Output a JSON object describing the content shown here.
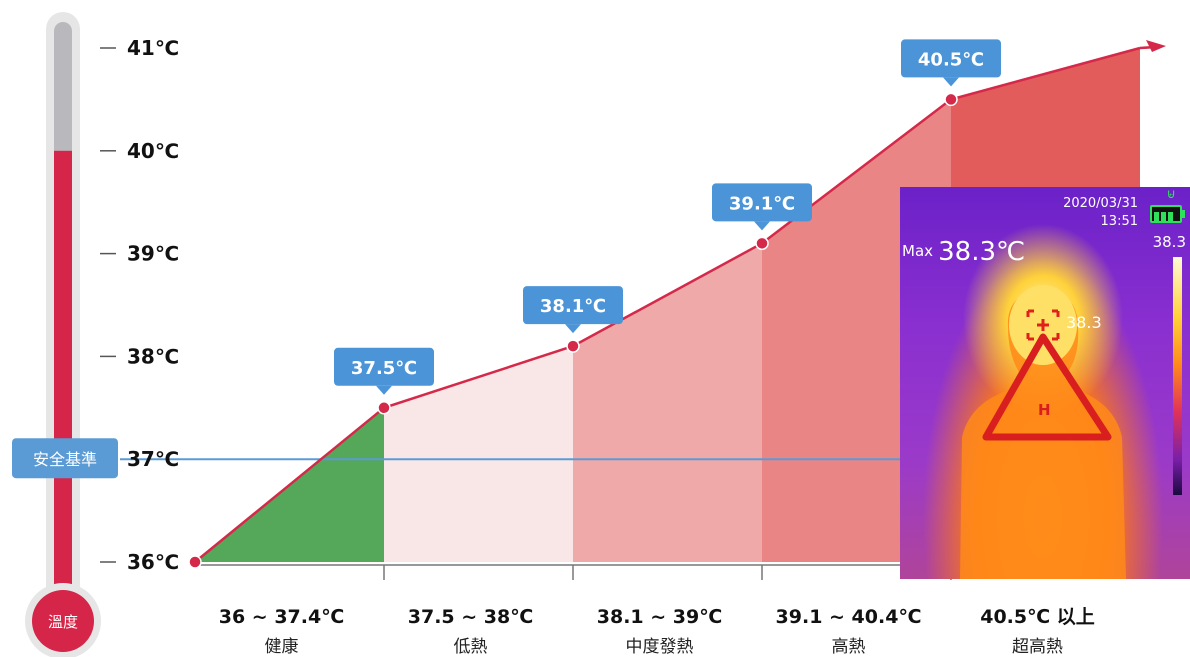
{
  "chart_data": {
    "type": "line",
    "x_labels": [
      "",
      "",
      "",
      "",
      "",
      ""
    ],
    "y": [
      36,
      37.5,
      38.1,
      39.1,
      40.5,
      41
    ],
    "point_labels": [
      "",
      "37.5℃",
      "38.1℃",
      "39.1℃",
      "40.5℃",
      ""
    ],
    "yticks": [
      {
        "value": 36,
        "label": "36℃"
      },
      {
        "value": 37,
        "label": "37℃"
      },
      {
        "value": 38,
        "label": "38℃"
      },
      {
        "value": 39,
        "label": "39℃"
      },
      {
        "value": 40,
        "label": "40℃"
      },
      {
        "value": 41,
        "label": "41℃"
      }
    ],
    "ylim": [
      36,
      41
    ],
    "ranges": [
      {
        "label": "36 ~ 37.4℃",
        "status": "健康",
        "color": "#55a75a"
      },
      {
        "label": "37.5 ~ 38℃",
        "status": "低熱",
        "color": "#f9e6e6"
      },
      {
        "label": "38.1 ~ 39℃",
        "status": "中度發熱",
        "color": "#f0a9a9"
      },
      {
        "label": "39.1 ~ 40.4℃",
        "status": "高熱",
        "color": "#ea8585"
      },
      {
        "label": "40.5℃ 以上",
        "status": "超高熱",
        "color": "#e35c5c"
      }
    ],
    "reference_line": {
      "value": 37,
      "label": "安全基準",
      "color": "#5b9bd5"
    },
    "line_color": "#d5294a",
    "bubble_color": "#4b94d8",
    "thermometer": {
      "label": "溫度",
      "level": 40,
      "fill_color": "#d52548"
    },
    "grid": false,
    "legend": "none"
  },
  "thermal_image": {
    "date": "2020/03/31",
    "time": "13:51",
    "max_label": "Max",
    "max_value": "38.3℃",
    "scale_top": "38.3",
    "spot_value": "38.3",
    "warning_letter": "H",
    "battery_color": "#2ee05a"
  }
}
